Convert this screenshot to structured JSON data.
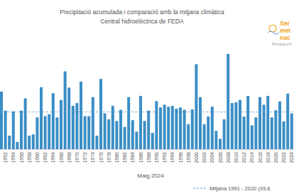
{
  "chart_data": {
    "type": "bar",
    "title": "Precipitació acumulada i comparació amb la mitjana climàtica",
    "subtitle": "Central hidroelèctrica de FEDA",
    "x_label": "Maig 2024",
    "logo": [
      "Ser",
      "met",
      "nac",
      "Principat d'A"
    ],
    "categories": [
      null,
      "1952",
      null,
      "1954",
      null,
      "1956",
      null,
      "1958",
      null,
      "1960",
      null,
      "1962",
      null,
      "1964",
      null,
      "1966",
      null,
      "1968",
      null,
      "1970",
      null,
      "1972",
      null,
      "1974",
      null,
      "1976",
      null,
      "1978",
      null,
      "1980",
      null,
      "1982",
      null,
      "1984",
      null,
      "1986",
      null,
      "1988",
      null,
      "1990",
      null,
      "1992",
      null,
      "1994",
      null,
      "1996",
      null,
      "1998",
      null,
      "2000",
      null,
      "2002",
      null,
      "2004",
      null,
      "2006",
      null,
      "2008",
      null,
      "2010",
      null,
      "2012",
      null,
      "2014",
      null,
      "2016",
      null,
      "2018",
      null,
      "2020",
      null,
      "2022",
      null,
      "2024"
    ],
    "values": [
      145,
      97,
      34,
      95,
      18,
      97,
      128,
      34,
      37,
      80,
      156,
      83,
      88,
      141,
      80,
      124,
      196,
      155,
      109,
      116,
      170,
      83,
      83,
      131,
      34,
      177,
      90,
      75,
      109,
      71,
      99,
      56,
      131,
      73,
      44,
      134,
      71,
      97,
      41,
      121,
      105,
      112,
      107,
      109,
      102,
      105,
      99,
      63,
      100,
      214,
      131,
      63,
      82,
      107,
      46,
      26,
      75,
      240,
      116,
      118,
      124,
      82,
      134,
      60,
      80,
      131,
      112,
      134,
      80,
      98,
      120,
      70,
      140,
      90
    ],
    "color": "#3b8ec6",
    "mean": {
      "label": "Mitjana 1991 - 2020 (93,6",
      "value": 93.6
    },
    "ylim": [
      0,
      340
    ],
    "grid": false,
    "tick_labels": "x"
  }
}
